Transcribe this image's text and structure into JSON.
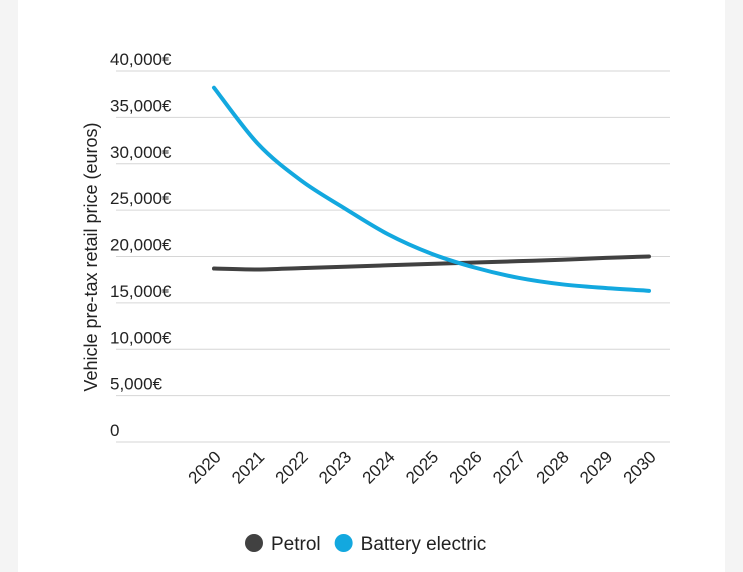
{
  "chart_data": {
    "type": "line",
    "ylabel": "Vehicle pre-tax retail price (euros)",
    "x": [
      "2020",
      "2021",
      "2022",
      "2023",
      "2024",
      "2025",
      "2026",
      "2027",
      "2028",
      "2029",
      "2030"
    ],
    "y_ticks": [
      "0",
      "5,000€",
      "10,000€",
      "15,000€",
      "20,000€",
      "25,000€",
      "30,000€",
      "35,000€",
      "40,000€"
    ],
    "ylim": [
      0,
      40000
    ],
    "grid": true,
    "legend_position": "bottom-center",
    "series": [
      {
        "name": "Petrol",
        "color": "#414141",
        "values": [
          18700,
          18600,
          18750,
          18900,
          19050,
          19200,
          19350,
          19500,
          19650,
          19850,
          20000
        ]
      },
      {
        "name": "Battery electric",
        "color": "#13a8df",
        "values": [
          38200,
          32200,
          28200,
          25200,
          22400,
          20300,
          18800,
          17700,
          17000,
          16600,
          16300
        ]
      }
    ]
  }
}
